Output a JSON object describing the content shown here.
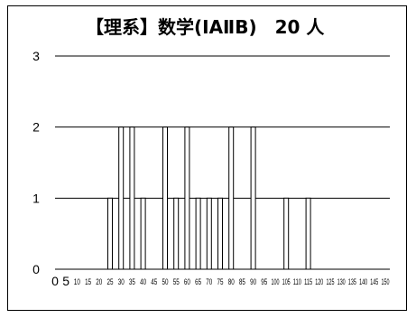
{
  "chart_data": {
    "type": "bar",
    "title": "【理系】数学(ⅠAⅡB)",
    "count_label": "20 人",
    "ylim": [
      0,
      3
    ],
    "yticks": [
      0,
      1,
      2,
      3
    ],
    "grid": true,
    "categories": [
      "0",
      "5",
      "10",
      "15",
      "20",
      "25",
      "30",
      "35",
      "40",
      "45",
      "50",
      "55",
      "60",
      "65",
      "70",
      "75",
      "80",
      "85",
      "90",
      "95",
      "100",
      "105",
      "110",
      "115",
      "120",
      "125",
      "130",
      "135",
      "140",
      "145",
      "150"
    ],
    "values": [
      0,
      0,
      0,
      0,
      0,
      1,
      2,
      2,
      1,
      0,
      2,
      1,
      2,
      1,
      1,
      1,
      2,
      0,
      2,
      0,
      0,
      1,
      0,
      1,
      0,
      0,
      0,
      0,
      0,
      0,
      0
    ],
    "xlabel": "",
    "ylabel": ""
  }
}
